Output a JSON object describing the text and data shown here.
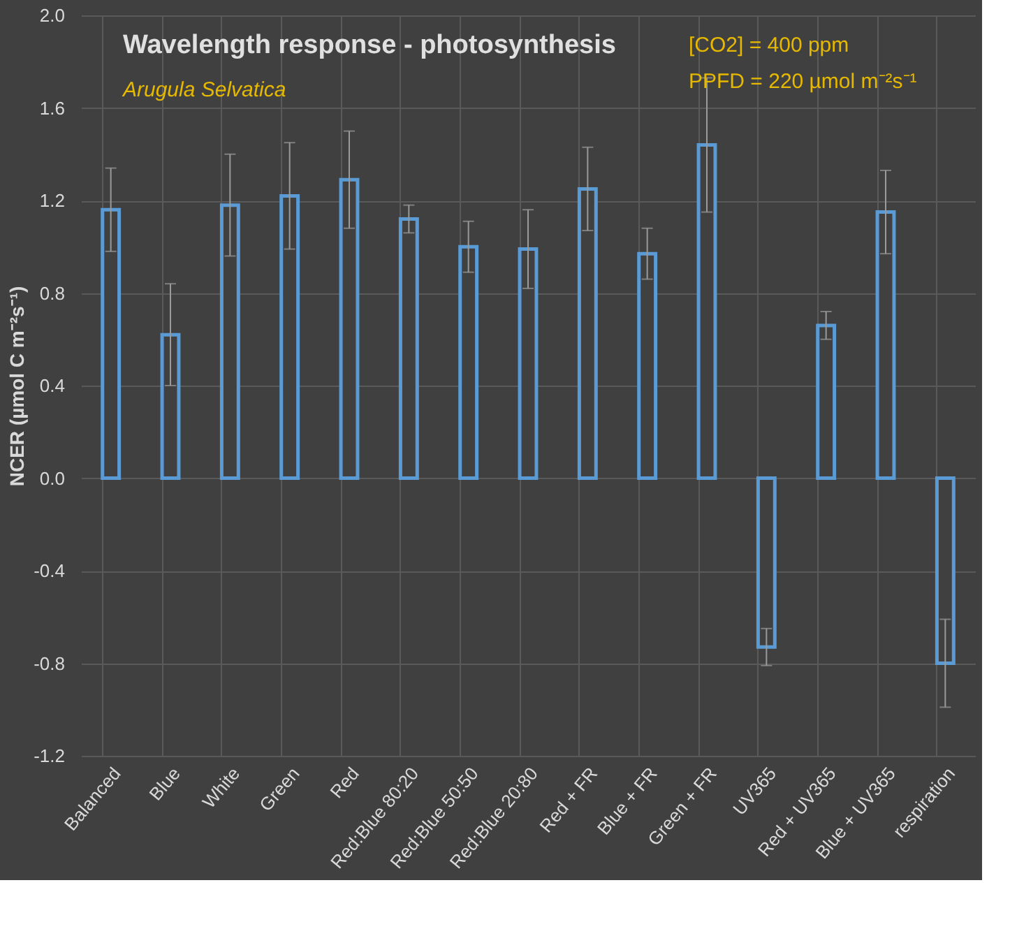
{
  "chart_data": {
    "type": "bar",
    "title": "Wavelength response - photosynthesis",
    "subtitle": "Arugula Selvatica",
    "ylabel": "NCER (µmol C m⁻²s⁻¹)",
    "annotations": [
      "[CO2] = 400 ppm",
      "PPFD = 220 µmol m⁻²s⁻¹"
    ],
    "categories": [
      "Balanced",
      "Blue",
      "White",
      "Green",
      "Red",
      "Red:Blue 80:20",
      "Red:Blue 50:50",
      "Red:Blue 20:80",
      "Red + FR",
      "Blue + FR",
      "Green + FR",
      "UV365",
      "Red + UV365",
      "Blue + UV365",
      "respiration"
    ],
    "series": [
      {
        "color": "#5b9bd5",
        "values": [
          1.16,
          0.62,
          1.18,
          1.22,
          1.29,
          1.12,
          1.0,
          0.99,
          1.25,
          0.97,
          1.44,
          -0.73,
          0.66,
          1.15,
          -0.8
        ],
        "errors": [
          0.18,
          0.22,
          0.22,
          0.23,
          0.21,
          0.06,
          0.11,
          0.17,
          0.18,
          0.11,
          0.29,
          0.08,
          0.06,
          0.18,
          0.19
        ]
      }
    ],
    "ylim": [
      -1.2,
      2.0
    ],
    "yticks": [
      {
        "value": -1.2,
        "label": "-1.2"
      },
      {
        "value": -0.8,
        "label": "-0.8"
      },
      {
        "value": -0.4,
        "label": "-0.4"
      },
      {
        "value": 0,
        "label": "0.0"
      },
      {
        "value": 0.4,
        "label": "0.4"
      },
      {
        "value": 0.8,
        "label": "0.8"
      },
      {
        "value": 1.2,
        "label": "1.2"
      },
      {
        "value": 1.6,
        "label": "1.6"
      },
      {
        "value": 2.0,
        "label": "2.0"
      }
    ],
    "grid": true
  }
}
